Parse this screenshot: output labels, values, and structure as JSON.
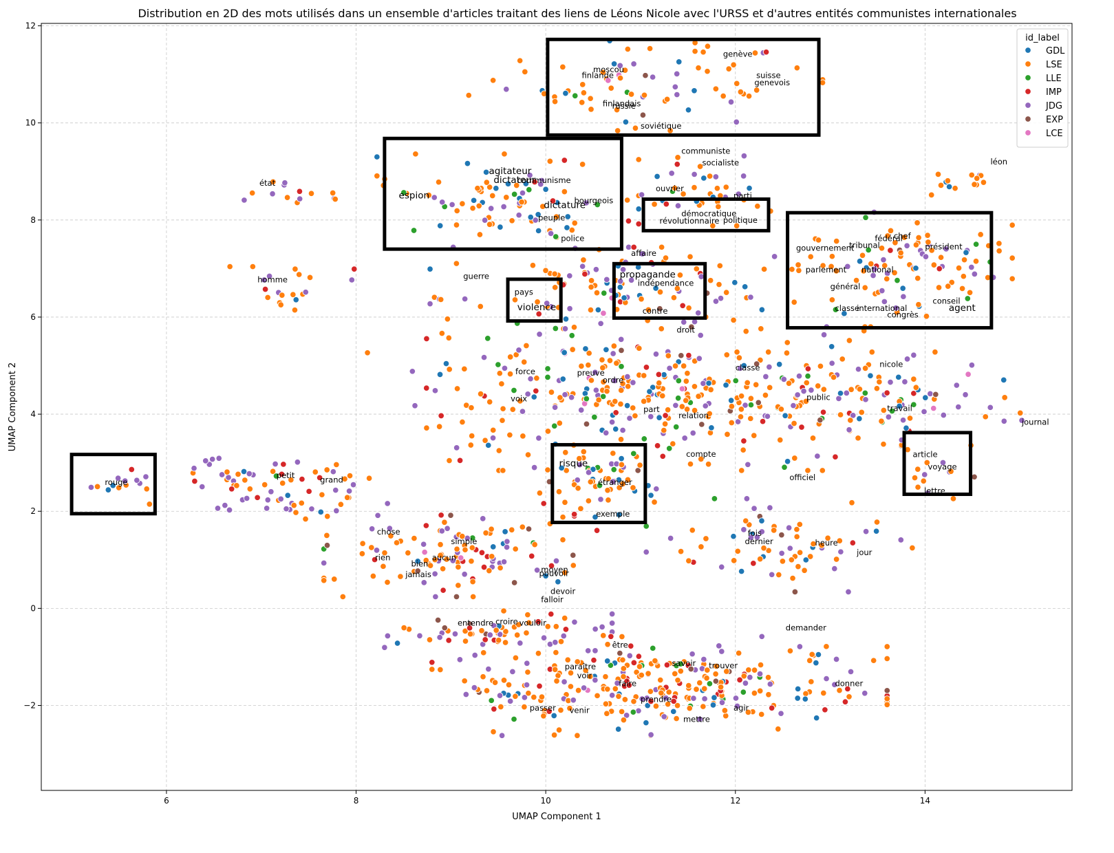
{
  "chart_data": {
    "type": "scatter",
    "title": "Distribution en 2D des mots utilisés dans un ensemble d'articles traitant des liens de Léons Nicole avec l'URSS et d'autres entités communistes internationales",
    "xlabel": "UMAP Component 1",
    "ylabel": "UMAP Component 2",
    "xlim": [
      4.68,
      15.55
    ],
    "ylim": [
      -3.75,
      12.05
    ],
    "xticks": [
      6,
      8,
      10,
      12,
      14
    ],
    "yticks": [
      -2,
      0,
      2,
      4,
      6,
      8,
      10,
      12
    ],
    "xtick_labels": [
      "6",
      "8",
      "10",
      "12",
      "14"
    ],
    "ytick_labels": [
      "−2",
      "0",
      "2",
      "4",
      "6",
      "8",
      "10",
      "12"
    ],
    "grid": true,
    "legend": {
      "title": "id_label",
      "position": "top-right"
    },
    "series": [
      {
        "name": "GDL",
        "color": "#1f77b4"
      },
      {
        "name": "LSE",
        "color": "#ff7f0e"
      },
      {
        "name": "LLE",
        "color": "#2ca02c"
      },
      {
        "name": "IMP",
        "color": "#d62728"
      },
      {
        "name": "JDG",
        "color": "#9467bd"
      },
      {
        "name": "EXP",
        "color": "#8c564b"
      },
      {
        "name": "LCE",
        "color": "#e377c2"
      }
    ],
    "clusters": [
      {
        "cx": 11.0,
        "cy": 10.8,
        "rx": 1.6,
        "ry": 0.8,
        "n": 75,
        "w": [
          10,
          58,
          3,
          5,
          20,
          3,
          1
        ]
      },
      {
        "cx": 9.6,
        "cy": 8.4,
        "rx": 1.15,
        "ry": 0.8,
        "n": 90,
        "w": [
          20,
          45,
          8,
          6,
          20,
          1,
          0
        ]
      },
      {
        "cx": 11.7,
        "cy": 8.6,
        "rx": 0.7,
        "ry": 0.6,
        "n": 40,
        "w": [
          12,
          55,
          3,
          10,
          18,
          1,
          1
        ]
      },
      {
        "cx": 13.6,
        "cy": 7.0,
        "rx": 1.1,
        "ry": 1.0,
        "n": 110,
        "w": [
          10,
          55,
          5,
          6,
          22,
          1,
          1
        ]
      },
      {
        "cx": 14.3,
        "cy": 8.8,
        "rx": 0.45,
        "ry": 0.35,
        "n": 14,
        "w": [
          5,
          80,
          5,
          0,
          10,
          0,
          0
        ]
      },
      {
        "cx": 10.7,
        "cy": 6.6,
        "rx": 1.6,
        "ry": 0.7,
        "n": 110,
        "w": [
          10,
          55,
          4,
          6,
          22,
          2,
          1
        ]
      },
      {
        "cx": 11.0,
        "cy": 4.4,
        "rx": 2.4,
        "ry": 1.3,
        "n": 340,
        "w": [
          10,
          50,
          6,
          8,
          23,
          2,
          1
        ]
      },
      {
        "cx": 13.4,
        "cy": 4.2,
        "rx": 1.2,
        "ry": 0.9,
        "n": 80,
        "w": [
          10,
          50,
          4,
          6,
          26,
          3,
          1
        ]
      },
      {
        "cx": 10.6,
        "cy": 2.6,
        "rx": 0.6,
        "ry": 0.6,
        "n": 55,
        "w": [
          10,
          50,
          5,
          8,
          22,
          4,
          1
        ]
      },
      {
        "cx": 12.5,
        "cy": 1.3,
        "rx": 1.2,
        "ry": 0.8,
        "n": 70,
        "w": [
          6,
          50,
          4,
          10,
          26,
          3,
          1
        ]
      },
      {
        "cx": 9.1,
        "cy": 1.2,
        "rx": 1.2,
        "ry": 0.8,
        "n": 120,
        "w": [
          6,
          45,
          6,
          14,
          24,
          4,
          1
        ]
      },
      {
        "cx": 7.2,
        "cy": 2.5,
        "rx": 0.9,
        "ry": 0.55,
        "n": 70,
        "w": [
          4,
          45,
          4,
          8,
          36,
          2,
          1
        ]
      },
      {
        "cx": 5.5,
        "cy": 2.5,
        "rx": 0.35,
        "ry": 0.3,
        "n": 14,
        "w": [
          10,
          40,
          0,
          10,
          40,
          0,
          0
        ]
      },
      {
        "cx": 7.2,
        "cy": 6.5,
        "rx": 0.65,
        "ry": 0.45,
        "n": 20,
        "w": [
          10,
          40,
          0,
          10,
          40,
          0,
          0
        ]
      },
      {
        "cx": 7.3,
        "cy": 8.6,
        "rx": 0.4,
        "ry": 0.3,
        "n": 14,
        "w": [
          0,
          50,
          5,
          5,
          40,
          0,
          0
        ]
      },
      {
        "cx": 9.5,
        "cy": -0.5,
        "rx": 1.0,
        "ry": 0.4,
        "n": 60,
        "w": [
          8,
          50,
          5,
          6,
          26,
          5,
          0
        ]
      },
      {
        "cx": 11.2,
        "cy": -1.6,
        "rx": 2.0,
        "ry": 0.85,
        "n": 300,
        "w": [
          6,
          52,
          4,
          14,
          20,
          3,
          1
        ]
      },
      {
        "cx": 14.9,
        "cy": 3.9,
        "rx": 0.25,
        "ry": 0.25,
        "n": 5,
        "w": [
          40,
          30,
          0,
          0,
          30,
          0,
          0
        ]
      },
      {
        "cx": 14.1,
        "cy": 2.8,
        "rx": 0.35,
        "ry": 0.45,
        "n": 12,
        "w": [
          5,
          60,
          5,
          5,
          20,
          5,
          0
        ]
      }
    ],
    "annotations": [
      {
        "text": "genève",
        "x": 11.87,
        "y": 11.42,
        "size": "n"
      },
      {
        "text": "suisse",
        "x": 12.22,
        "y": 10.98,
        "size": "n"
      },
      {
        "text": "genevois",
        "x": 12.2,
        "y": 10.83,
        "size": "n"
      },
      {
        "text": "moscou",
        "x": 10.5,
        "y": 11.1,
        "size": "n"
      },
      {
        "text": "finlande",
        "x": 10.38,
        "y": 10.98,
        "size": "n"
      },
      {
        "text": "finlandais",
        "x": 10.6,
        "y": 10.4,
        "size": "n"
      },
      {
        "text": "russie",
        "x": 10.7,
        "y": 10.35,
        "size": "n"
      },
      {
        "text": "soviétique",
        "x": 11.0,
        "y": 9.94,
        "size": "n"
      },
      {
        "text": "communiste",
        "x": 11.43,
        "y": 9.42,
        "size": "n"
      },
      {
        "text": "socialiste",
        "x": 11.65,
        "y": 9.18,
        "size": "n"
      },
      {
        "text": "ouvrier",
        "x": 11.16,
        "y": 8.65,
        "size": "n"
      },
      {
        "text": "parti",
        "x": 11.98,
        "y": 8.5,
        "size": "n"
      },
      {
        "text": "démocratique",
        "x": 11.43,
        "y": 8.13,
        "size": "n"
      },
      {
        "text": "révolutionnaire",
        "x": 11.2,
        "y": 7.98,
        "size": "n"
      },
      {
        "text": "politique",
        "x": 11.87,
        "y": 8.0,
        "size": "n"
      },
      {
        "text": "léon",
        "x": 14.69,
        "y": 9.2,
        "size": "n"
      },
      {
        "text": "agitateur",
        "x": 9.4,
        "y": 9.0,
        "size": "b"
      },
      {
        "text": "dictateur",
        "x": 9.45,
        "y": 8.82,
        "size": "b"
      },
      {
        "text": "communisme",
        "x": 9.7,
        "y": 8.82,
        "size": "n"
      },
      {
        "text": "espion",
        "x": 8.45,
        "y": 8.5,
        "size": "b"
      },
      {
        "text": "bourgeois",
        "x": 10.3,
        "y": 8.4,
        "size": "n"
      },
      {
        "text": "dictature",
        "x": 9.98,
        "y": 8.3,
        "size": "b"
      },
      {
        "text": "peuple",
        "x": 9.92,
        "y": 8.05,
        "size": "n"
      },
      {
        "text": "police",
        "x": 10.16,
        "y": 7.62,
        "size": "n"
      },
      {
        "text": "état",
        "x": 6.98,
        "y": 8.76,
        "size": "n"
      },
      {
        "text": "affaire",
        "x": 10.9,
        "y": 7.32,
        "size": "n"
      },
      {
        "text": "propagande",
        "x": 10.78,
        "y": 6.87,
        "size": "b"
      },
      {
        "text": "indépendance",
        "x": 10.97,
        "y": 6.7,
        "size": "n"
      },
      {
        "text": "contre",
        "x": 11.02,
        "y": 6.13,
        "size": "n"
      },
      {
        "text": "droit",
        "x": 11.38,
        "y": 5.74,
        "size": "n"
      },
      {
        "text": "homme",
        "x": 6.96,
        "y": 6.77,
        "size": "n"
      },
      {
        "text": "guerre",
        "x": 9.13,
        "y": 6.84,
        "size": "n"
      },
      {
        "text": "pays",
        "x": 9.67,
        "y": 6.52,
        "size": "n"
      },
      {
        "text": "violence",
        "x": 9.7,
        "y": 6.2,
        "size": "b"
      },
      {
        "text": "gouvernement",
        "x": 12.64,
        "y": 7.42,
        "size": "n"
      },
      {
        "text": "fédéral",
        "x": 13.47,
        "y": 7.62,
        "size": "n"
      },
      {
        "text": "chef",
        "x": 13.67,
        "y": 7.67,
        "size": "n"
      },
      {
        "text": "tribunal",
        "x": 13.2,
        "y": 7.48,
        "size": "n"
      },
      {
        "text": "président",
        "x": 14.0,
        "y": 7.45,
        "size": "n"
      },
      {
        "text": "parlement",
        "x": 12.74,
        "y": 6.98,
        "size": "n"
      },
      {
        "text": "national",
        "x": 13.33,
        "y": 6.98,
        "size": "n"
      },
      {
        "text": "général",
        "x": 13.0,
        "y": 6.63,
        "size": "n"
      },
      {
        "text": "conseil",
        "x": 14.08,
        "y": 6.33,
        "size": "n"
      },
      {
        "text": "classe",
        "x": 13.05,
        "y": 6.18,
        "size": "n"
      },
      {
        "text": "international",
        "x": 13.28,
        "y": 6.18,
        "size": "n"
      },
      {
        "text": "congrès",
        "x": 13.6,
        "y": 6.05,
        "size": "n"
      },
      {
        "text": "agent",
        "x": 14.25,
        "y": 6.18,
        "size": "b"
      },
      {
        "text": "nicole",
        "x": 13.52,
        "y": 5.03,
        "size": "n"
      },
      {
        "text": "classe",
        "x": 12.0,
        "y": 4.96,
        "size": "n"
      },
      {
        "text": "force",
        "x": 9.68,
        "y": 4.88,
        "size": "n"
      },
      {
        "text": "preuve",
        "x": 10.33,
        "y": 4.85,
        "size": "n"
      },
      {
        "text": "ordre",
        "x": 10.6,
        "y": 4.7,
        "size": "n"
      },
      {
        "text": "voix",
        "x": 9.63,
        "y": 4.32,
        "size": "n"
      },
      {
        "text": "public",
        "x": 12.75,
        "y": 4.35,
        "size": "n"
      },
      {
        "text": "travail",
        "x": 13.6,
        "y": 4.12,
        "size": "n"
      },
      {
        "text": "part",
        "x": 11.03,
        "y": 4.1,
        "size": "n"
      },
      {
        "text": "relation",
        "x": 11.4,
        "y": 3.97,
        "size": "n"
      },
      {
        "text": "journal",
        "x": 15.02,
        "y": 3.84,
        "size": "n"
      },
      {
        "text": "compte",
        "x": 11.48,
        "y": 3.18,
        "size": "n"
      },
      {
        "text": "article",
        "x": 13.87,
        "y": 3.17,
        "size": "n"
      },
      {
        "text": "voyage",
        "x": 14.03,
        "y": 2.92,
        "size": "n"
      },
      {
        "text": "lettre",
        "x": 13.99,
        "y": 2.42,
        "size": "n"
      },
      {
        "text": "officiel",
        "x": 12.57,
        "y": 2.7,
        "size": "n"
      },
      {
        "text": "risque",
        "x": 10.14,
        "y": 2.98,
        "size": "b"
      },
      {
        "text": "étranger",
        "x": 10.55,
        "y": 2.6,
        "size": "n"
      },
      {
        "text": "exemple",
        "x": 10.53,
        "y": 1.95,
        "size": "n"
      },
      {
        "text": "rouge",
        "x": 5.35,
        "y": 2.6,
        "size": "n"
      },
      {
        "text": "petit",
        "x": 7.16,
        "y": 2.74,
        "size": "n"
      },
      {
        "text": "grand",
        "x": 7.62,
        "y": 2.65,
        "size": "n"
      },
      {
        "text": "chose",
        "x": 8.22,
        "y": 1.58,
        "size": "n"
      },
      {
        "text": "simple",
        "x": 9.0,
        "y": 1.38,
        "size": "n"
      },
      {
        "text": "fois",
        "x": 12.13,
        "y": 1.55,
        "size": "n"
      },
      {
        "text": "dernier",
        "x": 12.1,
        "y": 1.38,
        "size": "n"
      },
      {
        "text": "heure",
        "x": 12.84,
        "y": 1.35,
        "size": "n"
      },
      {
        "text": "jour",
        "x": 13.28,
        "y": 1.15,
        "size": "n"
      },
      {
        "text": "rien",
        "x": 8.2,
        "y": 1.05,
        "size": "n"
      },
      {
        "text": "aucun",
        "x": 8.8,
        "y": 1.05,
        "size": "n"
      },
      {
        "text": "bien",
        "x": 8.58,
        "y": 0.92,
        "size": "n"
      },
      {
        "text": "jamais",
        "x": 8.52,
        "y": 0.7,
        "size": "n"
      },
      {
        "text": "moyen",
        "x": 9.95,
        "y": 0.8,
        "size": "n"
      },
      {
        "text": "pouvoir",
        "x": 9.93,
        "y": 0.72,
        "size": "n"
      },
      {
        "text": "devoir",
        "x": 10.05,
        "y": 0.35,
        "size": "n"
      },
      {
        "text": "falloir",
        "x": 9.95,
        "y": 0.18,
        "size": "n"
      },
      {
        "text": "entendre",
        "x": 9.07,
        "y": -0.3,
        "size": "n"
      },
      {
        "text": "croire",
        "x": 9.47,
        "y": -0.27,
        "size": "n"
      },
      {
        "text": "vouloir",
        "x": 9.72,
        "y": -0.3,
        "size": "n"
      },
      {
        "text": "demander",
        "x": 12.53,
        "y": -0.4,
        "size": "n"
      },
      {
        "text": "être",
        "x": 10.7,
        "y": -0.75,
        "size": "n"
      },
      {
        "text": "savoir",
        "x": 11.33,
        "y": -1.13,
        "size": "n"
      },
      {
        "text": "trouver",
        "x": 11.72,
        "y": -1.18,
        "size": "n"
      },
      {
        "text": "paraître",
        "x": 10.2,
        "y": -1.2,
        "size": "n"
      },
      {
        "text": "voir",
        "x": 10.33,
        "y": -1.38,
        "size": "n"
      },
      {
        "text": "faire",
        "x": 10.77,
        "y": -1.55,
        "size": "n"
      },
      {
        "text": "donner",
        "x": 13.05,
        "y": -1.55,
        "size": "n"
      },
      {
        "text": "prendre",
        "x": 11.0,
        "y": -1.87,
        "size": "n"
      },
      {
        "text": "passer",
        "x": 9.83,
        "y": -2.05,
        "size": "n"
      },
      {
        "text": "venir",
        "x": 10.25,
        "y": -2.1,
        "size": "n"
      },
      {
        "text": "agir",
        "x": 11.98,
        "y": -2.05,
        "size": "n"
      },
      {
        "text": "mettre",
        "x": 11.45,
        "y": -2.28,
        "size": "n"
      }
    ],
    "highlight_boxes": [
      {
        "x0": 10.02,
        "x1": 12.88,
        "y0": 9.75,
        "y1": 11.72
      },
      {
        "x0": 8.3,
        "x1": 10.8,
        "y0": 7.4,
        "y1": 9.68
      },
      {
        "x0": 11.03,
        "x1": 12.35,
        "y0": 7.78,
        "y1": 8.43
      },
      {
        "x0": 12.55,
        "x1": 14.7,
        "y0": 5.78,
        "y1": 8.15
      },
      {
        "x0": 10.72,
        "x1": 11.68,
        "y0": 5.98,
        "y1": 7.1
      },
      {
        "x0": 9.6,
        "x1": 10.16,
        "y0": 5.92,
        "y1": 6.78
      },
      {
        "x0": 13.78,
        "x1": 14.48,
        "y0": 2.35,
        "y1": 3.62
      },
      {
        "x0": 10.07,
        "x1": 11.05,
        "y0": 1.77,
        "y1": 3.37
      },
      {
        "x0": 5.0,
        "x1": 5.88,
        "y0": 1.95,
        "y1": 3.17
      }
    ]
  }
}
